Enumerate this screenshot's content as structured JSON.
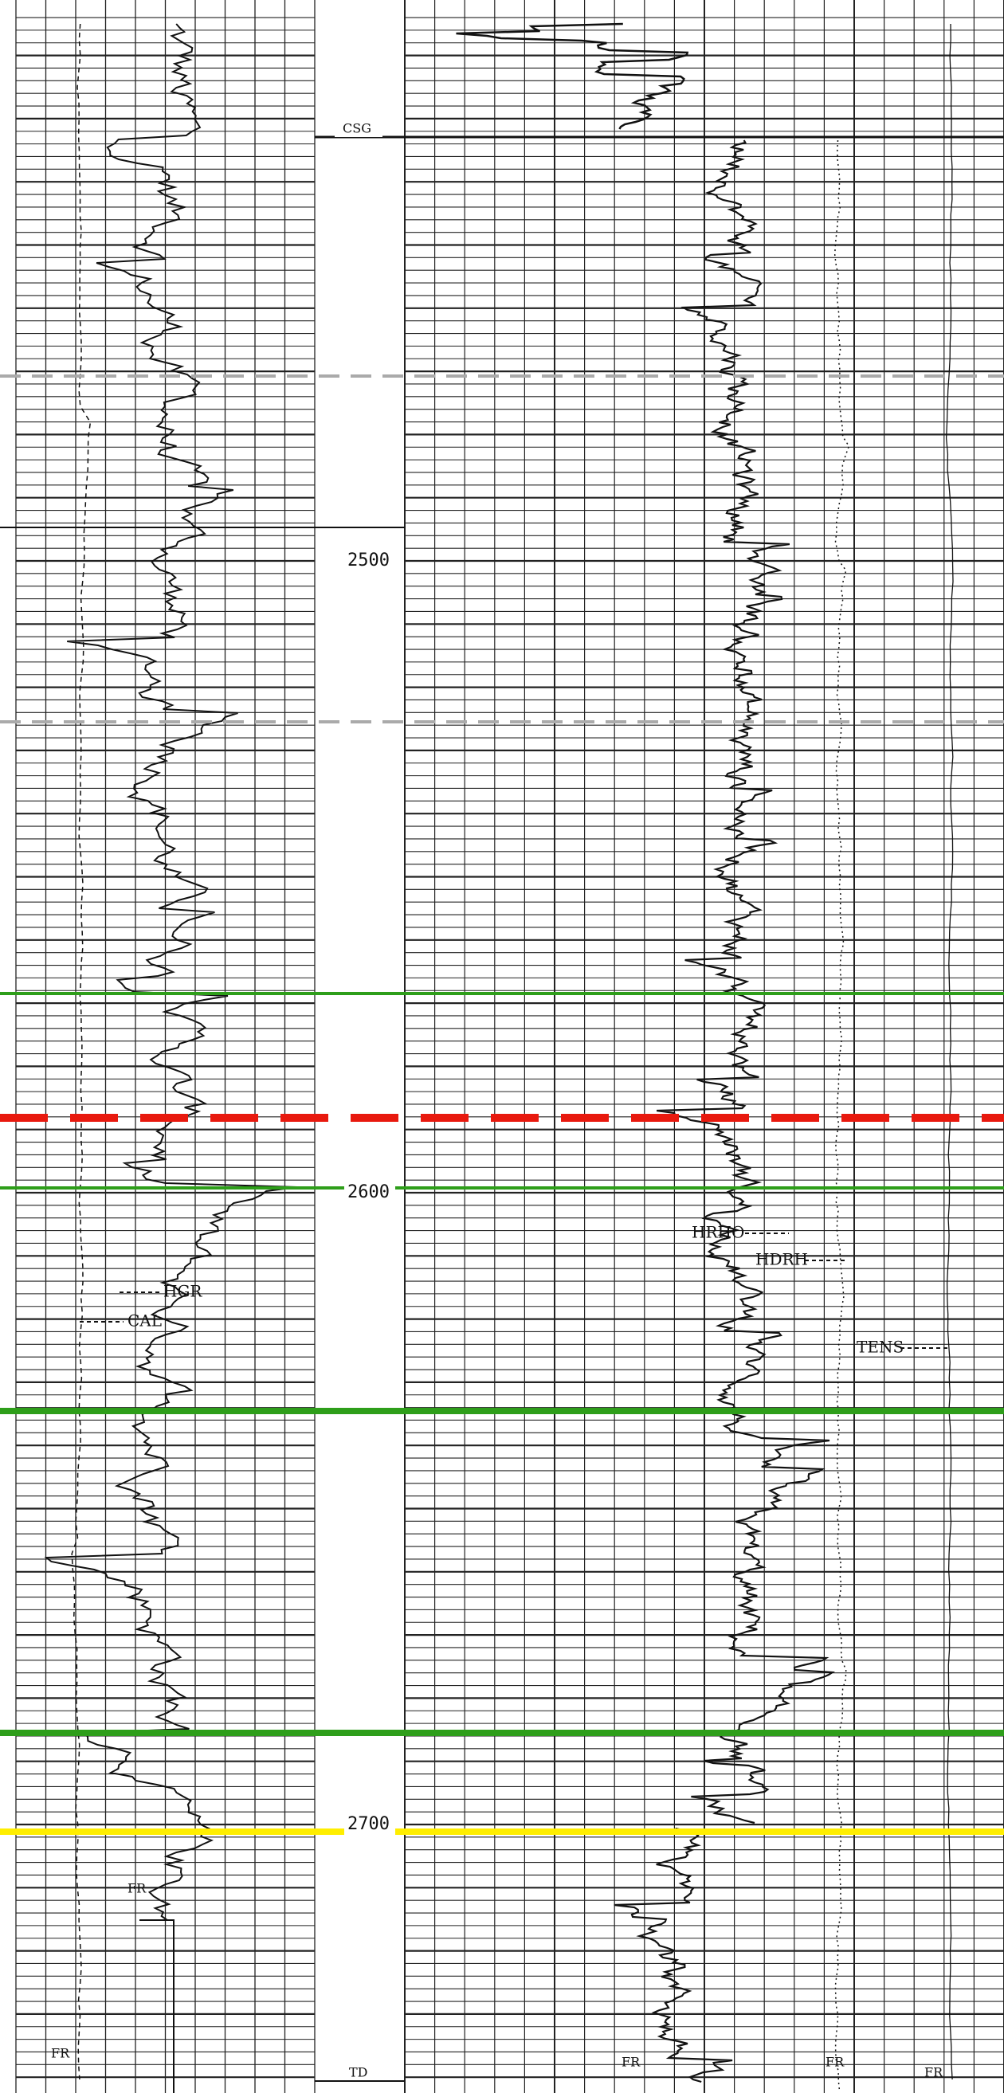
{
  "depth_track": {
    "casing_label": "CSG",
    "depths": [
      "2500",
      "2600",
      "2700"
    ],
    "total_depth_label": "TD"
  },
  "curve_labels": {
    "gamma": "HGR",
    "caliper": "CAL",
    "density": "HRHO",
    "correction": "HDRH",
    "tension": "TENS",
    "run_marks": [
      "FR",
      "FR",
      "FR",
      "FR",
      "FR"
    ]
  }
}
